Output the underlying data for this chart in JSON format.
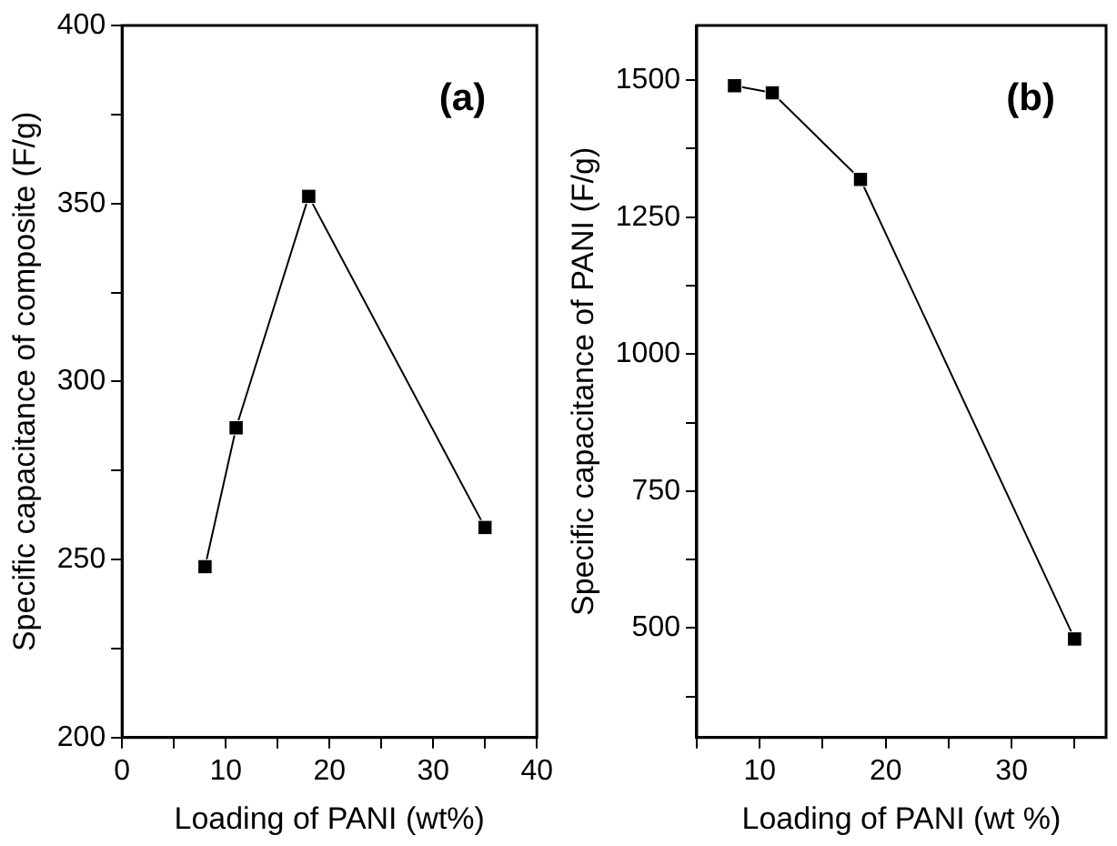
{
  "chart_data": [
    {
      "type": "line",
      "xlabel": "Loading of PANI (wt%)",
      "ylabel": "Specific capacitance of composite (F/g)",
      "annotations": [
        "(a)"
      ],
      "marker": "square",
      "line_style": "solid",
      "legend": false,
      "series": [
        {
          "color": "#000000",
          "x": [
            8,
            11,
            18,
            35
          ],
          "values": [
            248,
            287,
            352,
            259
          ]
        }
      ],
      "xlim": [
        0,
        40
      ],
      "xticks": [
        0,
        {
          "value": 5,
          "label": null
        },
        10,
        {
          "value": 15,
          "label": null
        },
        20,
        {
          "value": 25,
          "label": null
        },
        30,
        {
          "value": 35,
          "label": null
        },
        40
      ],
      "ylim": [
        200,
        400
      ],
      "yticks": [
        200,
        {
          "value": 225,
          "label": null
        },
        250,
        {
          "value": 275,
          "label": null
        },
        300,
        {
          "value": 325,
          "label": null
        },
        350,
        {
          "value": 375,
          "label": null
        },
        400
      ]
    },
    {
      "type": "line",
      "xlabel": "Loading of PANI (wt %)",
      "ylabel": "Specific capacitance of PANI (F/g)",
      "annotations": [
        "(b)"
      ],
      "marker": "square",
      "line_style": "solid",
      "legend": false,
      "series": [
        {
          "color": "#000000",
          "x": [
            8,
            11,
            18,
            35
          ],
          "values": [
            1490,
            1477,
            1319,
            480
          ]
        }
      ],
      "xlim": [
        5,
        37.5
      ],
      "xticks": [
        {
          "value": 5,
          "label": null
        },
        10,
        {
          "value": 15,
          "label": null
        },
        20,
        {
          "value": 25,
          "label": null
        },
        30,
        {
          "value": 35,
          "label": null
        }
      ],
      "ylim": [
        300,
        1600
      ],
      "yticks": [
        {
          "value": 375,
          "label": null
        },
        500,
        {
          "value": 625,
          "label": null
        },
        750,
        {
          "value": 875,
          "label": null
        },
        1000,
        {
          "value": 1125,
          "label": null
        },
        1250,
        {
          "value": 1375,
          "label": null
        },
        1500
      ]
    }
  ]
}
